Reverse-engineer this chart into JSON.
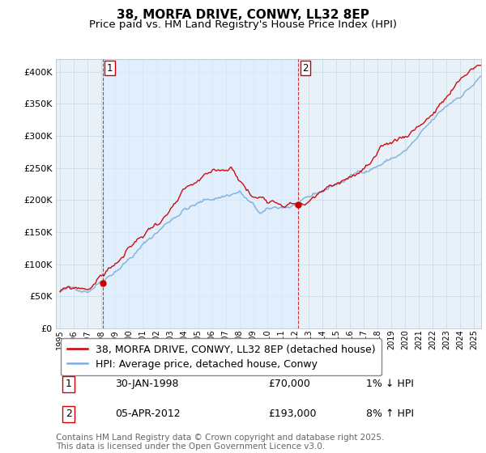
{
  "title": "38, MORFA DRIVE, CONWY, LL32 8EP",
  "subtitle": "Price paid vs. HM Land Registry's House Price Index (HPI)",
  "ylim": [
    0,
    420000
  ],
  "yticks": [
    0,
    50000,
    100000,
    150000,
    200000,
    250000,
    300000,
    350000,
    400000
  ],
  "ytick_labels": [
    "£0",
    "£50K",
    "£100K",
    "£150K",
    "£200K",
    "£250K",
    "£300K",
    "£350K",
    "£400K"
  ],
  "xlim_start": 1994.7,
  "xlim_end": 2025.5,
  "sale1_x": 1998.08,
  "sale1_y": 70000,
  "sale2_x": 2012.27,
  "sale2_y": 193000,
  "sale1_label": "1",
  "sale2_label": "2",
  "sale1_date": "30-JAN-1998",
  "sale1_price": "£70,000",
  "sale1_hpi": "1% ↓ HPI",
  "sale2_date": "05-APR-2012",
  "sale2_price": "£193,000",
  "sale2_hpi": "8% ↑ HPI",
  "line1_color": "#cc0000",
  "line2_color": "#7aafdb",
  "vline_color": "#cc0000",
  "vline2_color": "#cc0000",
  "fill_color": "#ddeeff",
  "legend1_label": "38, MORFA DRIVE, CONWY, LL32 8EP (detached house)",
  "legend2_label": "HPI: Average price, detached house, Conwy",
  "footer": "Contains HM Land Registry data © Crown copyright and database right 2025.\nThis data is licensed under the Open Government Licence v3.0.",
  "background_color": "#e8f0f8",
  "grid_color": "#c8d8e8",
  "title_fontsize": 11,
  "subtitle_fontsize": 9.5,
  "tick_fontsize": 8,
  "legend_fontsize": 9,
  "annotation_fontsize": 9,
  "footer_fontsize": 7.5
}
